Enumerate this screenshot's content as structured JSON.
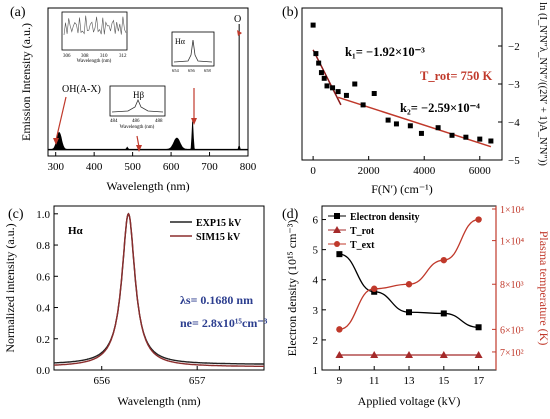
{
  "chart_data": [
    {
      "panel": "(a)",
      "type": "line",
      "xlabel": "Wavelength (nm)",
      "ylabel": "Emission Intensity (a.u.)",
      "xlim": [
        280,
        800
      ],
      "xticks": [
        "300",
        "400",
        "500",
        "600",
        "700",
        "800"
      ],
      "annotations": [
        "OH(A-X)",
        "O",
        "Hβ",
        "Hα"
      ],
      "insets": [
        {
          "label": "",
          "xlabel": "Wavelength (nm)",
          "xticks": [
            "306",
            "308",
            "310",
            "312"
          ]
        },
        {
          "label": "Hβ",
          "xlabel": "Wavelength (nm)",
          "xticks": [
            "484",
            "486",
            "488"
          ]
        },
        {
          "label": "Hα",
          "xlabel": "Wavelength (nm)",
          "xticks": [
            "654",
            "656",
            "658"
          ]
        }
      ],
      "peaks": [
        {
          "x": 309,
          "y": 0.12
        },
        {
          "x": 486,
          "y": 0.015
        },
        {
          "x": 615,
          "y": 0.08
        },
        {
          "x": 656,
          "y": 0.2
        },
        {
          "x": 777,
          "y": 0.9
        }
      ]
    },
    {
      "panel": "(b)",
      "type": "scatter",
      "xlabel": "F(N′) (cm⁻¹)",
      "ylabel": "ln (I_N′N″λ_N′N″/((2N′ + 1)A_N′N″))",
      "xlim": [
        -400,
        6800
      ],
      "ylim": [
        -5,
        -1
      ],
      "xticks": [
        0,
        2000,
        4000,
        6000
      ],
      "yticks": [
        -2,
        -3,
        -4,
        -5
      ],
      "annotations": [
        "k₁= −1.92×10⁻³",
        "k₂= −2.59×10⁻⁴",
        "T_rot= 750 K"
      ],
      "points": [
        [
          0,
          -1.45
        ],
        [
          100,
          -2.2
        ],
        [
          200,
          -2.45
        ],
        [
          300,
          -2.7
        ],
        [
          400,
          -2.85
        ],
        [
          500,
          -3.05
        ],
        [
          700,
          -3.1
        ],
        [
          900,
          -3.2
        ],
        [
          1200,
          -3.3
        ],
        [
          1500,
          -3.0
        ],
        [
          1800,
          -3.55
        ],
        [
          2200,
          -3.25
        ],
        [
          2700,
          -3.95
        ],
        [
          3000,
          -4.05
        ],
        [
          3500,
          -4.1
        ],
        [
          3900,
          -4.3
        ],
        [
          4500,
          -4.15
        ],
        [
          5000,
          -4.35
        ],
        [
          5500,
          -4.4
        ],
        [
          6000,
          -4.45
        ],
        [
          6400,
          -4.5
        ]
      ],
      "fit_lines": [
        {
          "x": [
            0,
            1000
          ],
          "y": [
            -2.1,
            -3.55
          ],
          "color": "#8b1a1a"
        },
        {
          "x": [
            900,
            6400
          ],
          "y": [
            -3.35,
            -4.65
          ],
          "color": "#c0392b"
        }
      ]
    },
    {
      "panel": "(c)",
      "type": "line",
      "xlabel": "Wavelength (nm)",
      "ylabel": "Normalized intensity (a.u.)",
      "xlim": [
        655.5,
        657.7
      ],
      "ylim": [
        0,
        1.05
      ],
      "xticks": [
        656,
        657
      ],
      "yticks": [
        "0.0",
        "0.2",
        "0.4",
        "0.6",
        "0.8",
        "1.0"
      ],
      "annotations": [
        "Hα",
        "λs= 0.1680 nm",
        "ne= 2.8x10¹⁵cm⁻³"
      ],
      "series": [
        {
          "name": "EXP15 kV",
          "center": 656.28,
          "color": "#222222"
        },
        {
          "name": "SIM15 kV",
          "center": 656.28,
          "color": "#8b2d2d"
        }
      ]
    },
    {
      "panel": "(d)",
      "type": "line",
      "xlabel": "Applied voltage (kV)",
      "ylabel": "Electron density (10¹⁵ cm⁻³)",
      "ylabel_right": "Plasma temperature (K)",
      "categories": [
        9,
        11,
        13,
        15,
        17
      ],
      "ylim": [
        1,
        6
      ],
      "yticks": [
        1,
        2,
        3,
        4,
        5,
        6
      ],
      "yticks_right": [
        "7×10²",
        "6×10³",
        "8×10³",
        "1×10⁴",
        "1×10⁴"
      ],
      "series": [
        {
          "name": "Electron density",
          "values": [
            4.85,
            3.6,
            2.92,
            2.88,
            2.42
          ],
          "color": "#000000",
          "marker": "square"
        },
        {
          "name": "T_rot",
          "values": [
            1.5,
            1.5,
            1.5,
            1.5,
            1.5
          ],
          "color": "#a52a2a",
          "marker": "triangle"
        },
        {
          "name": "T_ext",
          "values": [
            2.35,
            3.7,
            3.85,
            4.65,
            6.0
          ],
          "color": "#c0392b",
          "marker": "circle"
        }
      ]
    }
  ]
}
